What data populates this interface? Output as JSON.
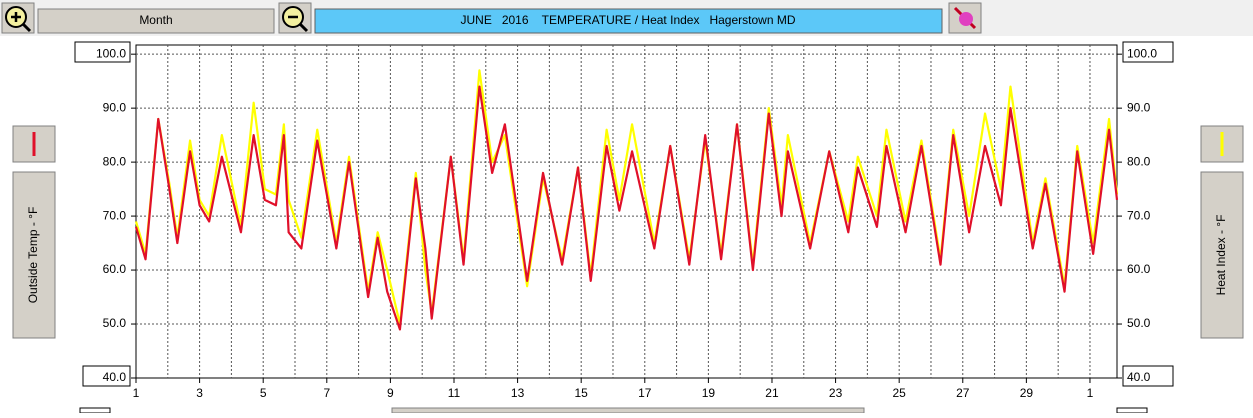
{
  "toolbar": {
    "range_button": "Month"
  },
  "chart_data": {
    "type": "line",
    "title": "JUNE   2016    TEMPERATURE / Heat Index   Hagerstown MD",
    "ylabel": "Outside Temp - °F",
    "y2label": "Heat Index - °F",
    "grid": true,
    "x": [
      1.0,
      1.3,
      1.7,
      2.05,
      2.3,
      2.7,
      3.0,
      3.3,
      3.7,
      4.3,
      4.7,
      5.05,
      5.4,
      5.65,
      5.8,
      6.2,
      6.7,
      7.3,
      7.7,
      8.3,
      8.6,
      8.9,
      9.3,
      9.8,
      10.1,
      10.3,
      10.9,
      11.3,
      11.8,
      12.2,
      12.6,
      13.3,
      13.8,
      14.4,
      14.9,
      15.3,
      15.8,
      16.2,
      16.6,
      17.3,
      17.8,
      18.4,
      18.9,
      19.4,
      19.9,
      20.4,
      20.9,
      21.3,
      21.5,
      22.2,
      22.8,
      23.4,
      23.7,
      24.3,
      24.6,
      25.2,
      25.7,
      26.3,
      26.7,
      27.2,
      27.7,
      28.2,
      28.5,
      29.2,
      29.6,
      30.2,
      30.6,
      31.1,
      31.6,
      31.85
    ],
    "series": [
      {
        "name": "Outside Temp - °F",
        "color": "#e0102a",
        "values": [
          68,
          62,
          88,
          75,
          65,
          82,
          72,
          69,
          81,
          67,
          85,
          73,
          72,
          85,
          67,
          64,
          84,
          64,
          80,
          55,
          66,
          56,
          49,
          77,
          64,
          51,
          81,
          61,
          94,
          78,
          87,
          58,
          78,
          61,
          79,
          58,
          83,
          71,
          82,
          64,
          83,
          61,
          85,
          62,
          87,
          60,
          89,
          70,
          82,
          64,
          82,
          67,
          79,
          68,
          83,
          67,
          83,
          61,
          85,
          67,
          83,
          72,
          90,
          64,
          76,
          56,
          82,
          63,
          86,
          73
        ]
      },
      {
        "name": "Heat Index - °F",
        "color": "#ffff00",
        "axis": "y2",
        "values": [
          69,
          63,
          88,
          76,
          66,
          84,
          73,
          70,
          85,
          68,
          91,
          75,
          74,
          87,
          73,
          66,
          86,
          65,
          81,
          56,
          67,
          60,
          50,
          78,
          60,
          52,
          81,
          62,
          97,
          80,
          85,
          57,
          77,
          62,
          79,
          59,
          86,
          73,
          87,
          65,
          83,
          62,
          84,
          63,
          87,
          61,
          90,
          72,
          85,
          65,
          82,
          69,
          81,
          70,
          86,
          69,
          84,
          62,
          86,
          70,
          89,
          75,
          94,
          65,
          77,
          57,
          83,
          65,
          88,
          74
        ]
      }
    ],
    "xlim": [
      1,
      31.85
    ],
    "xticks": [
      1,
      3,
      5,
      7,
      9,
      11,
      13,
      15,
      17,
      19,
      21,
      23,
      25,
      27,
      29,
      {
        "value": 31,
        "label": "1"
      }
    ],
    "ylim": [
      40,
      101.7
    ],
    "yticks": [
      {
        "value": 40,
        "label": "40.0"
      },
      {
        "value": 50,
        "label": "50.0"
      },
      {
        "value": 60,
        "label": "60.0"
      },
      {
        "value": 70,
        "label": "70.0"
      },
      {
        "value": 80,
        "label": "80.0"
      },
      {
        "value": 90,
        "label": "90.0"
      },
      {
        "value": 100,
        "label": "100.0"
      }
    ],
    "y2lim": [
      40,
      101.7
    ],
    "y2ticks": [
      {
        "value": 40,
        "label": "40.0"
      },
      {
        "value": 50,
        "label": "50.0"
      },
      {
        "value": 60,
        "label": "60.0"
      },
      {
        "value": 70,
        "label": "70.0"
      },
      {
        "value": 80,
        "label": "80.0"
      },
      {
        "value": 90,
        "label": "90.0"
      },
      {
        "value": 100,
        "label": "100.0"
      }
    ]
  }
}
